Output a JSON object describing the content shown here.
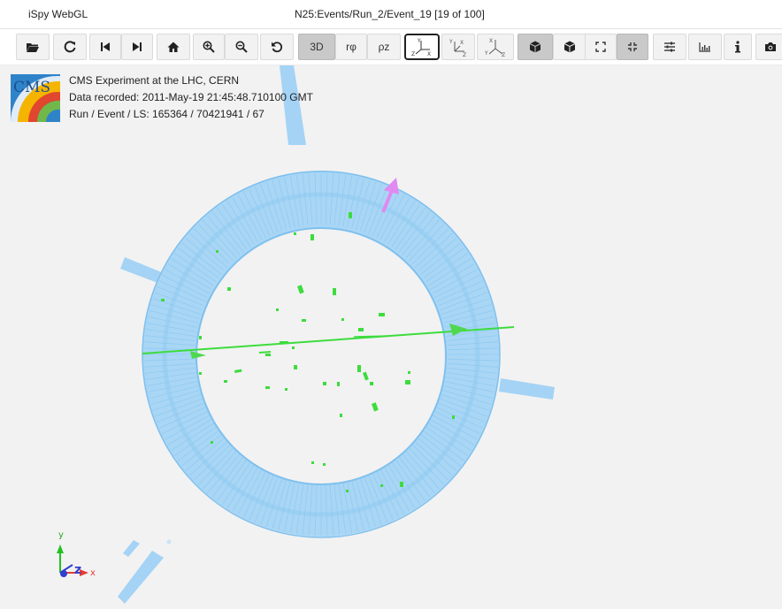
{
  "window": {
    "app_title": "iSpy WebGL",
    "event_title": "N25:Events/Run_2/Event_19 [19 of 100]"
  },
  "toolbar": {
    "view_3d_label": "3D",
    "view_rphi_label": "rφ",
    "view_rz_label": "ρz",
    "axes_xyz_labels": [
      "Y",
      "Z",
      "X"
    ],
    "axes_yzx_labels": [
      "Y",
      "X",
      "Z"
    ],
    "axes_xzy_labels": [
      "X",
      "Y",
      "Z"
    ],
    "icons": [
      "folder-open-icon",
      "reload-icon",
      "previous-event-icon",
      "next-event-icon",
      "home-icon",
      "zoom-in-icon",
      "zoom-out-icon",
      "undo-rotation-icon",
      "perspective-icon",
      "orthographic-icon",
      "fullscreen-icon",
      "exit-fullscreen-icon",
      "settings-icon",
      "chart-icon",
      "info-icon",
      "camera-icon"
    ]
  },
  "event_info": {
    "experiment": "CMS Experiment at the LHC, CERN",
    "recorded": "Data recorded: 2011-May-19 21:45:48.710100 GMT",
    "run_event": "Run / Event / LS: 165364 / 70421941 / 67",
    "logo_text": "CMS"
  },
  "axes_gizmo": {
    "labels": [
      "y",
      "z",
      "x"
    ]
  },
  "colors": {
    "barrel": "#9fd1f4",
    "tracks": "#3ddc3d",
    "muon_arrow": "#e089f0",
    "axis_x": "#e53935",
    "axis_y": "#22c122",
    "axis_z": "#2f3fd1"
  }
}
